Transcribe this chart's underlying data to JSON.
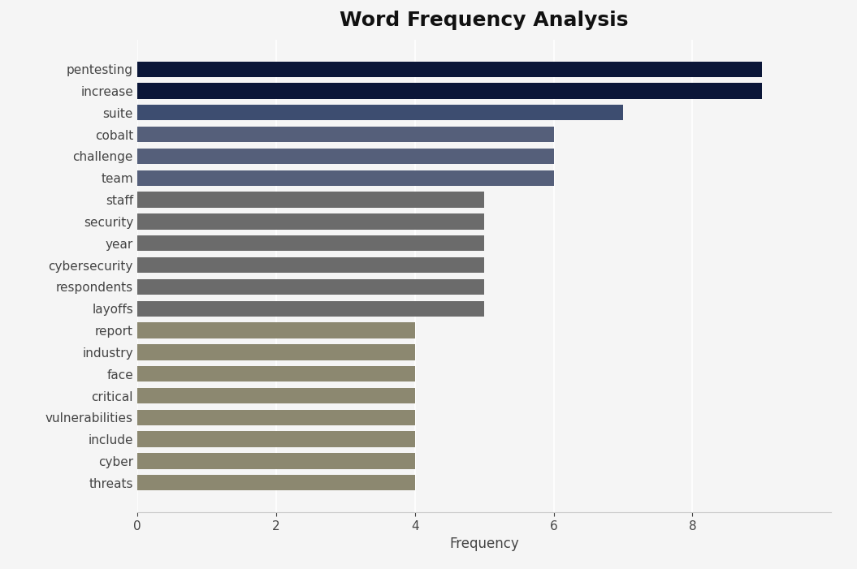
{
  "categories": [
    "threats",
    "cyber",
    "include",
    "vulnerabilities",
    "critical",
    "face",
    "industry",
    "report",
    "layoffs",
    "respondents",
    "cybersecurity",
    "year",
    "security",
    "staff",
    "team",
    "challenge",
    "cobalt",
    "suite",
    "increase",
    "pentesting"
  ],
  "values": [
    4,
    4,
    4,
    4,
    4,
    4,
    4,
    4,
    5,
    5,
    5,
    5,
    5,
    5,
    6,
    6,
    6,
    7,
    9,
    9
  ],
  "bar_colors": [
    "#8c8870",
    "#8c8870",
    "#8c8870",
    "#8c8870",
    "#8c8870",
    "#8c8870",
    "#8c8870",
    "#8c8870",
    "#6b6b6b",
    "#6b6b6b",
    "#6b6b6b",
    "#6b6b6b",
    "#6b6b6b",
    "#6b6b6b",
    "#555f7a",
    "#555f7a",
    "#555f7a",
    "#3d4d70",
    "#0b1638",
    "#0b1638"
  ],
  "title": "Word Frequency Analysis",
  "xlabel": "Frequency",
  "ylabel": "",
  "xlim": [
    0,
    10
  ],
  "xticks": [
    0,
    2,
    4,
    6,
    8
  ],
  "background_color": "#f5f5f5",
  "plot_bg_color": "#f5f5f5",
  "title_fontsize": 18,
  "label_fontsize": 12,
  "tick_fontsize": 11,
  "bar_height": 0.72
}
